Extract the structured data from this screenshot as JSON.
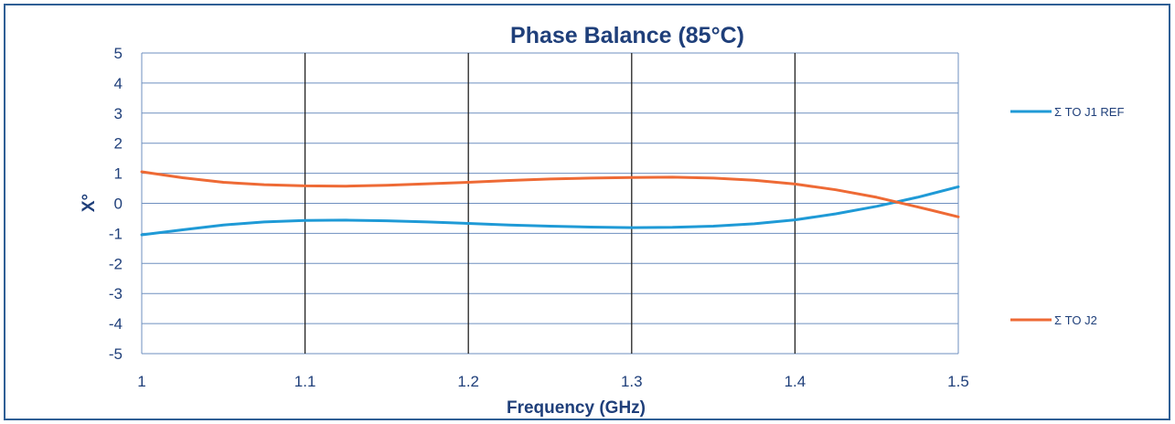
{
  "chart_data": {
    "type": "line",
    "title": "Phase Balance (85°C)",
    "xlabel": "Frequency (GHz)",
    "ylabel": "X°",
    "xlim": [
      1,
      1.5
    ],
    "ylim": [
      -5,
      5
    ],
    "x_ticks": [
      "1",
      "1.1",
      "1.2",
      "1.3",
      "1.4",
      "1.5"
    ],
    "y_ticks": [
      "5",
      "4",
      "3",
      "2",
      "1",
      "0",
      "-1",
      "-2",
      "-3",
      "-4",
      "-5"
    ],
    "grid": true,
    "legend_position": "right",
    "series": [
      {
        "name": "Σ TO J1 REF",
        "color": "#1f9ad6",
        "x": [
          1.0,
          1.025,
          1.05,
          1.075,
          1.1,
          1.125,
          1.15,
          1.175,
          1.2,
          1.225,
          1.25,
          1.275,
          1.3,
          1.325,
          1.35,
          1.375,
          1.4,
          1.425,
          1.45,
          1.475,
          1.5
        ],
        "y": [
          -1.05,
          -0.88,
          -0.72,
          -0.62,
          -0.57,
          -0.56,
          -0.58,
          -0.62,
          -0.67,
          -0.72,
          -0.76,
          -0.79,
          -0.81,
          -0.8,
          -0.76,
          -0.68,
          -0.55,
          -0.35,
          -0.1,
          0.2,
          0.55
        ]
      },
      {
        "name": "Σ TO J2",
        "color": "#ee6a35",
        "x": [
          1.0,
          1.025,
          1.05,
          1.075,
          1.1,
          1.125,
          1.15,
          1.175,
          1.2,
          1.225,
          1.25,
          1.275,
          1.3,
          1.325,
          1.35,
          1.375,
          1.4,
          1.425,
          1.45,
          1.475,
          1.5
        ],
        "y": [
          1.05,
          0.85,
          0.7,
          0.62,
          0.58,
          0.57,
          0.6,
          0.65,
          0.7,
          0.76,
          0.81,
          0.84,
          0.86,
          0.87,
          0.84,
          0.77,
          0.64,
          0.45,
          0.2,
          -0.12,
          -0.45
        ]
      }
    ]
  }
}
